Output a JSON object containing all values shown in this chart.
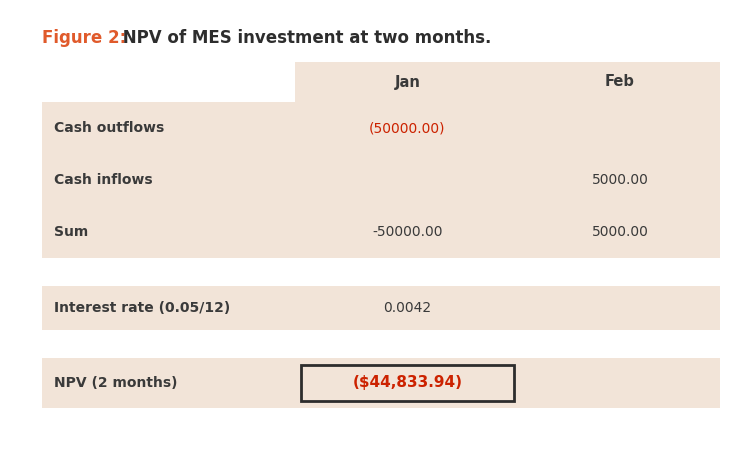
{
  "title_prefix": "Figure 2:",
  "title_text": " NPV of MES investment at two months.",
  "title_prefix_color": "#E05A2B",
  "title_text_color": "#2d2d2d",
  "title_fontsize": 12,
  "background_color": "#ffffff",
  "table_bg_color": "#F2E4D8",
  "header_row": [
    "",
    "Jan",
    "Feb"
  ],
  "rows": [
    [
      "Cash outflows",
      "(50000.00)",
      ""
    ],
    [
      "Cash inflows",
      "",
      "5000.00"
    ],
    [
      "Sum",
      "-50000.00",
      "5000.00"
    ]
  ],
  "interest_row": [
    "Interest rate (0.05/12)",
    "0.0042",
    ""
  ],
  "npv_row": [
    "NPV (2 months)",
    "($44,833.94)",
    ""
  ],
  "red_color": "#CC2200",
  "dark_color": "#3a3a3a",
  "cell_fontsize": 10,
  "header_fontsize": 10.5
}
